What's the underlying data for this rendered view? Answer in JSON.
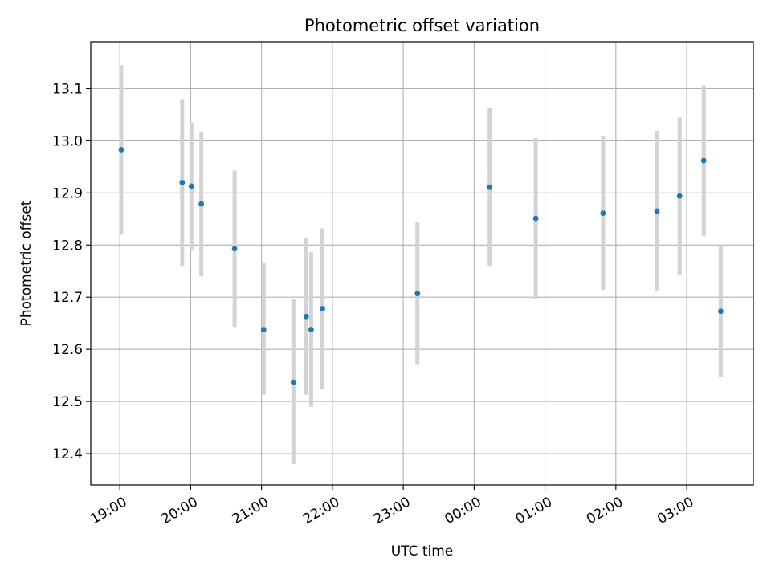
{
  "chart_data": {
    "type": "scatter",
    "title": "Photometric offset variation",
    "xlabel": "UTC time",
    "ylabel": "Photometric offset",
    "x_unit": "hours (19:00 = 19.0, next-day hours continue past 24)",
    "xlim": [
      18.59,
      27.94
    ],
    "ylim": [
      12.34,
      13.19
    ],
    "grid": true,
    "x_ticks": [
      {
        "value": 19,
        "label": "19:00"
      },
      {
        "value": 20,
        "label": "20:00"
      },
      {
        "value": 21,
        "label": "21:00"
      },
      {
        "value": 22,
        "label": "22:00"
      },
      {
        "value": 23,
        "label": "23:00"
      },
      {
        "value": 24,
        "label": "00:00"
      },
      {
        "value": 25,
        "label": "01:00"
      },
      {
        "value": 26,
        "label": "02:00"
      },
      {
        "value": 27,
        "label": "03:00"
      }
    ],
    "y_ticks": [
      {
        "value": 12.4,
        "label": "12.4"
      },
      {
        "value": 12.5,
        "label": "12.5"
      },
      {
        "value": 12.6,
        "label": "12.6"
      },
      {
        "value": 12.7,
        "label": "12.7"
      },
      {
        "value": 12.8,
        "label": "12.8"
      },
      {
        "value": 12.9,
        "label": "12.9"
      },
      {
        "value": 13.0,
        "label": "13.0"
      },
      {
        "value": 13.1,
        "label": "13.1"
      }
    ],
    "marker_color": "#1f77b4",
    "errorbar_color": "#d3d3d3",
    "points": [
      {
        "x": 19.02,
        "y": 12.983,
        "lo": 12.82,
        "hi": 13.145
      },
      {
        "x": 19.88,
        "y": 12.92,
        "lo": 12.76,
        "hi": 13.08
      },
      {
        "x": 20.01,
        "y": 12.913,
        "lo": 12.79,
        "hi": 13.035
      },
      {
        "x": 20.15,
        "y": 12.879,
        "lo": 12.74,
        "hi": 13.016
      },
      {
        "x": 20.62,
        "y": 12.793,
        "lo": 12.643,
        "hi": 12.943
      },
      {
        "x": 21.03,
        "y": 12.638,
        "lo": 12.513,
        "hi": 12.765
      },
      {
        "x": 21.45,
        "y": 12.537,
        "lo": 12.38,
        "hi": 12.697
      },
      {
        "x": 21.63,
        "y": 12.663,
        "lo": 12.513,
        "hi": 12.813
      },
      {
        "x": 21.7,
        "y": 12.638,
        "lo": 12.49,
        "hi": 12.786
      },
      {
        "x": 21.86,
        "y": 12.678,
        "lo": 12.523,
        "hi": 12.832
      },
      {
        "x": 23.2,
        "y": 12.707,
        "lo": 12.57,
        "hi": 12.845
      },
      {
        "x": 24.22,
        "y": 12.911,
        "lo": 12.76,
        "hi": 13.063
      },
      {
        "x": 24.87,
        "y": 12.851,
        "lo": 12.697,
        "hi": 13.005
      },
      {
        "x": 25.82,
        "y": 12.861,
        "lo": 12.714,
        "hi": 13.009
      },
      {
        "x": 26.58,
        "y": 12.865,
        "lo": 12.711,
        "hi": 13.019
      },
      {
        "x": 26.9,
        "y": 12.894,
        "lo": 12.743,
        "hi": 13.045
      },
      {
        "x": 27.24,
        "y": 12.962,
        "lo": 12.818,
        "hi": 13.106
      },
      {
        "x": 27.48,
        "y": 12.673,
        "lo": 12.547,
        "hi": 12.8
      }
    ]
  }
}
